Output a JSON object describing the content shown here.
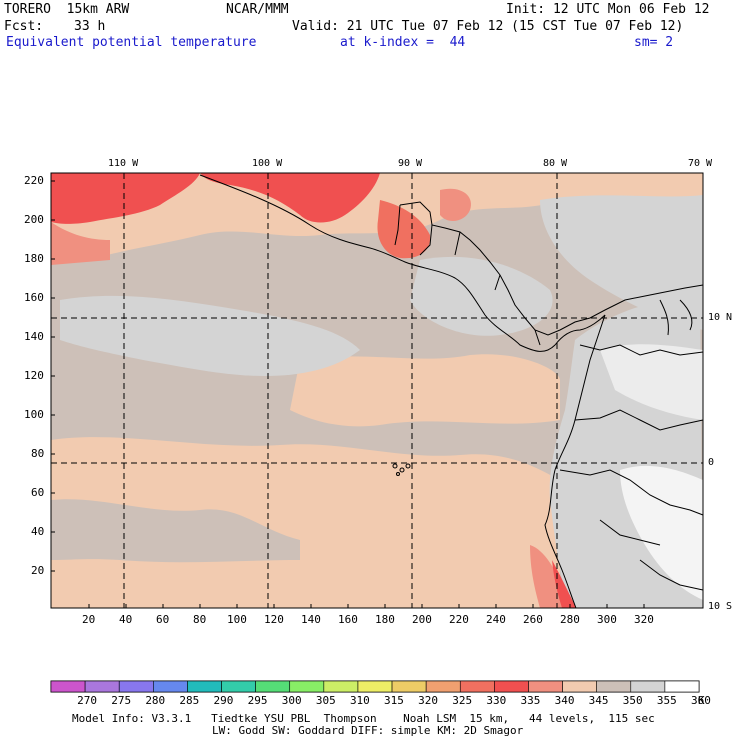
{
  "header": {
    "model": "TORERO  15km ARW",
    "center": "NCAR/MMM",
    "init": "Init: 12 UTC Mon 06 Feb 12",
    "fcst_label": "Fcst:",
    "fcst_value": "33 h",
    "valid": "Valid: 21 UTC Tue 07 Feb 12 (15 CST Tue 07 Feb 12)",
    "field": "Equivalent potential temperature",
    "level": "at k-index =  44",
    "smooth": "sm= 2"
  },
  "map": {
    "lon_labels": [
      "110 W",
      "100 W",
      "90 W",
      "80 W",
      "70 W"
    ],
    "lat_labels": [
      "10 N",
      "0",
      "10 S"
    ],
    "x_ticks": [
      "20",
      "40",
      "60",
      "80",
      "100",
      "120",
      "140",
      "160",
      "180",
      "200",
      "220",
      "240",
      "260",
      "280",
      "300",
      "320"
    ],
    "y_ticks": [
      "220",
      "200",
      "180",
      "160",
      "140",
      "120",
      "100",
      "80",
      "60",
      "40",
      "20"
    ]
  },
  "colorbar": {
    "unit": "K",
    "levels": [
      "270",
      "275",
      "280",
      "285",
      "290",
      "295",
      "300",
      "305",
      "310",
      "315",
      "320",
      "325",
      "330",
      "335",
      "340",
      "345",
      "350",
      "355",
      "360"
    ],
    "colors": [
      "#cc55cc",
      "#aa77dd",
      "#8877ee",
      "#6688ee",
      "#22bbbb",
      "#33ccaa",
      "#55dd77",
      "#88ee66",
      "#ccee66",
      "#eeee66",
      "#eecc66",
      "#f0a070",
      "#f07060",
      "#f05050",
      "#f09080",
      "#f2cbb0",
      "#cdc0b8",
      "#d4d4d4",
      "#ffffff"
    ]
  },
  "footer": {
    "line1": "Model Info: V3.3.1   Tiedtke YSU PBL  Thompson    Noah LSM  15 km,   44 levels,  115 sec",
    "line2": "LW: Godd SW: Goddard DIFF: simple KM: 2D Smagor"
  }
}
